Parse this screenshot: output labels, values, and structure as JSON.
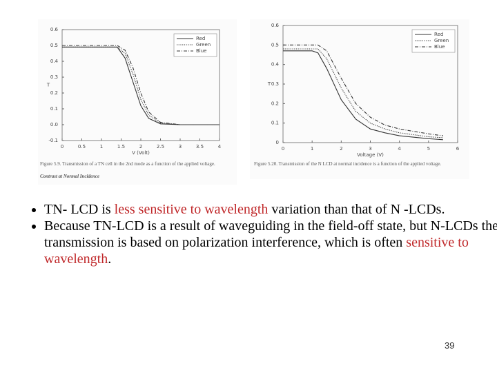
{
  "chart_data": [
    {
      "type": "line",
      "xlabel": "V (Volt)",
      "ylabel": "T",
      "x": [
        0,
        0.5,
        1,
        1.4,
        1.6,
        1.8,
        2.0,
        2.2,
        2.5,
        3,
        3.5,
        4
      ],
      "series": [
        {
          "name": "Red",
          "color": "#333333",
          "style": "solid",
          "values": [
            0.49,
            0.49,
            0.49,
            0.49,
            0.42,
            0.27,
            0.12,
            0.04,
            0.005,
            0,
            0,
            0
          ]
        },
        {
          "name": "Green",
          "color": "#333333",
          "style": "dotted",
          "values": [
            0.49,
            0.49,
            0.49,
            0.49,
            0.45,
            0.32,
            0.16,
            0.06,
            0.01,
            0,
            0,
            0
          ]
        },
        {
          "name": "Blue",
          "color": "#333333",
          "style": "dashdot",
          "values": [
            0.5,
            0.5,
            0.5,
            0.5,
            0.47,
            0.36,
            0.2,
            0.08,
            0.015,
            0,
            0,
            0
          ]
        }
      ],
      "xlim": [
        0,
        4
      ],
      "xticks": [
        0,
        0.5,
        1,
        1.5,
        2,
        2.5,
        3,
        3.5,
        4
      ],
      "ylim": [
        -0.1,
        0.6
      ],
      "yticks": [
        -0.1,
        {
          "value": 0,
          "label": "0.0"
        },
        0.1,
        0.2,
        0.3,
        0.4,
        0.5,
        0.6
      ],
      "legend": "upper right",
      "caption": "Figure 5.9. Transmission of a TN cell in the 2nd mode as a function of the applied voltage.",
      "note": "Contrast at Normal Incidence"
    },
    {
      "type": "line",
      "xlabel": "Voltage (V)",
      "ylabel": "T",
      "x": [
        0,
        0.5,
        1,
        1.2,
        1.5,
        2,
        2.5,
        3,
        3.5,
        4,
        5,
        5.5
      ],
      "series": [
        {
          "name": "Red",
          "color": "#333333",
          "style": "solid",
          "values": [
            0.47,
            0.47,
            0.47,
            0.46,
            0.38,
            0.22,
            0.12,
            0.07,
            0.05,
            0.035,
            0.02,
            0.015
          ]
        },
        {
          "name": "Green",
          "color": "#333333",
          "style": "dotted",
          "values": [
            0.48,
            0.48,
            0.48,
            0.48,
            0.43,
            0.28,
            0.16,
            0.1,
            0.07,
            0.05,
            0.03,
            0.025
          ]
        },
        {
          "name": "Blue",
          "color": "#333333",
          "style": "dashdot",
          "values": [
            0.5,
            0.5,
            0.5,
            0.5,
            0.47,
            0.33,
            0.2,
            0.13,
            0.09,
            0.07,
            0.045,
            0.035
          ]
        }
      ],
      "xlim": [
        0,
        6
      ],
      "xticks": [
        0,
        1,
        2,
        3,
        4,
        5,
        6
      ],
      "ylim": [
        0,
        0.6
      ],
      "yticks": [
        0,
        0.1,
        0.2,
        0.3,
        0.4,
        0.5,
        0.6
      ],
      "legend": "upper right",
      "caption": "Figure 5.20. Transmission of the N LCD at normal incidence is a function of the applied voltage."
    }
  ],
  "highlight_color": "#c0282a",
  "bullets": [
    [
      {
        "text": "TN- LCD is "
      },
      {
        "text": "less sensitive to wavelength",
        "highlight": true
      },
      {
        "text": " variation than that of N -LCDs."
      }
    ],
    [
      {
        "text": "Because TN-LCD is a result of waveguiding in the field-off state, but N-LCDs the transmission is based on polarization interference, which is often "
      },
      {
        "text": "sensitive to wavelength",
        "highlight": true
      },
      {
        "text": "."
      }
    ]
  ],
  "page_number": "39"
}
